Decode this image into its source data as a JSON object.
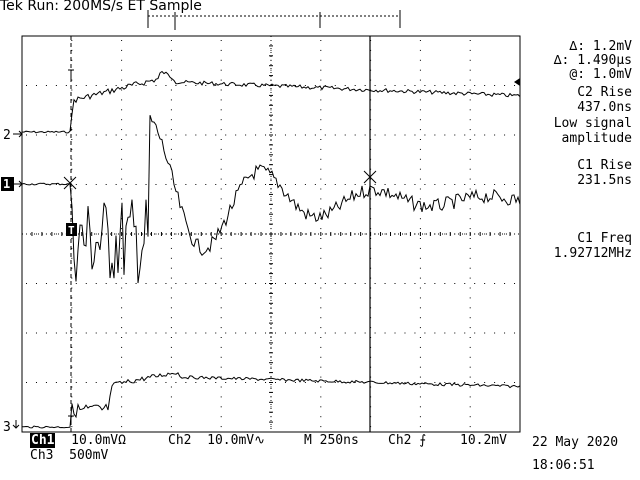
{
  "status": {
    "brand": "Tek",
    "run_label": "Run: 200MS/s ET Sample"
  },
  "cursor_readout": {
    "delta_v": "∆: 1.2mV",
    "delta_t": "∆: 1.490µs",
    "at_v": "@: 1.0mV"
  },
  "measurements": [
    {
      "name": "C2 Rise",
      "value": "437.0ns",
      "note1": "Low signal",
      "note2": "amplitude"
    },
    {
      "name": "C1 Rise",
      "value": "231.5ns"
    },
    {
      "name": "C1 Freq",
      "value": "1.92712MHz"
    }
  ],
  "channel_markers": {
    "ch2": "2",
    "ch1": "1",
    "ch3": "3",
    "trigger": "T"
  },
  "bottom_bar": {
    "ch1_badge": "Ch1",
    "ch1_scale": "10.0mVΩ",
    "ch2_label": "Ch2",
    "ch2_scale": "10.0mV∿",
    "m_label": "M",
    "timebase": "250ns",
    "trig_source": "Ch2",
    "trig_slope": "⨍",
    "trig_level": "10.2mV",
    "ch3_label": "Ch3",
    "ch3_scale": "500mV"
  },
  "datetime": {
    "date": "22 May 2020",
    "time": "18:06:51"
  },
  "colors": {
    "trace": "#000000",
    "grid_dots": "#000000",
    "background": "#ffffff"
  }
}
